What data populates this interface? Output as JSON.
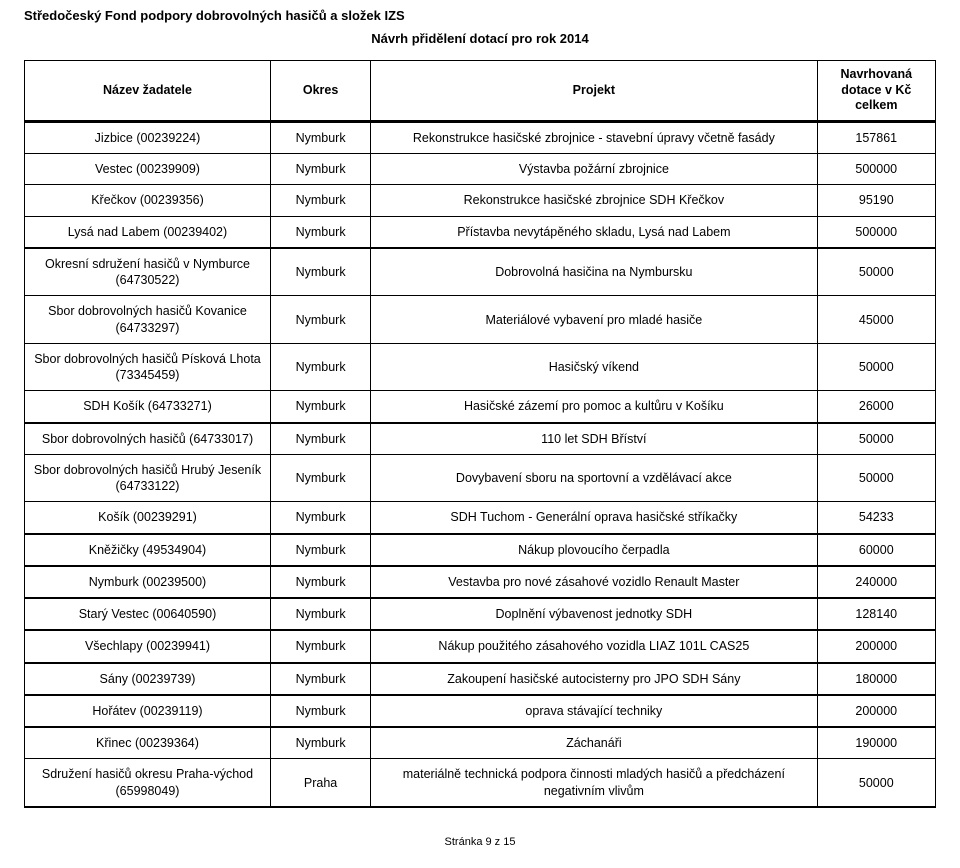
{
  "title": "Středočeský Fond podpory dobrovolných hasičů a složek IZS",
  "subtitle": "Návrh přidělení dotací pro rok 2014",
  "columns": [
    "Název žadatele",
    "Okres",
    "Projekt",
    "Navrhovaná dotace v Kč celkem"
  ],
  "groups": [
    {
      "rows": [
        {
          "name": "Jizbice (00239224)",
          "okres": "Nymburk",
          "projekt": "Rekonstrukce hasičské zbrojnice - stavební úpravy včetně fasády",
          "dotace": "157861"
        },
        {
          "name": "Vestec (00239909)",
          "okres": "Nymburk",
          "projekt": "Výstavba požární zbrojnice",
          "dotace": "500000"
        },
        {
          "name": "Křečkov (00239356)",
          "okres": "Nymburk",
          "projekt": "Rekonstrukce hasičské zbrojnice SDH Křečkov",
          "dotace": "95190"
        },
        {
          "name": "Lysá nad Labem (00239402)",
          "okres": "Nymburk",
          "projekt": "Přístavba nevytápěného skladu, Lysá nad Labem",
          "dotace": "500000"
        }
      ]
    },
    {
      "rows": [
        {
          "name": "Okresní sdružení hasičů v Nymburce (64730522)",
          "okres": "Nymburk",
          "projekt": "Dobrovolná hasičina na Nymbursku",
          "dotace": "50000"
        },
        {
          "name": "Sbor dobrovolných hasičů Kovanice (64733297)",
          "okres": "Nymburk",
          "projekt": "Materiálové vybavení pro mladé hasiče",
          "dotace": "45000"
        },
        {
          "name": "Sbor dobrovolných hasičů Písková Lhota (73345459)",
          "okres": "Nymburk",
          "projekt": "Hasičský víkend",
          "dotace": "50000"
        },
        {
          "name": "SDH Košík (64733271)",
          "okres": "Nymburk",
          "projekt": "Hasičské zázemí pro pomoc a kultůru v Košíku",
          "dotace": "26000"
        }
      ]
    },
    {
      "rows": [
        {
          "name": "Sbor dobrovolných hasičů (64733017)",
          "okres": "Nymburk",
          "projekt": "110 let SDH Bříství",
          "dotace": "50000"
        },
        {
          "name": "Sbor dobrovolných hasičů Hrubý Jeseník (64733122)",
          "okres": "Nymburk",
          "projekt": "Dovybavení sboru na sportovní a vzdělávací akce",
          "dotace": "50000"
        },
        {
          "name": "Košík (00239291)",
          "okres": "Nymburk",
          "projekt": "SDH Tuchom - Generální oprava hasičské stříkačky",
          "dotace": "54233"
        }
      ]
    },
    {
      "rows": [
        {
          "name": "Kněžičky (49534904)",
          "okres": "Nymburk",
          "projekt": "Nákup plovoucího čerpadla",
          "dotace": "60000"
        }
      ]
    },
    {
      "rows": [
        {
          "name": "Nymburk (00239500)",
          "okres": "Nymburk",
          "projekt": "Vestavba pro nové zásahové vozidlo Renault Master",
          "dotace": "240000"
        }
      ]
    },
    {
      "rows": [
        {
          "name": "Starý Vestec (00640590)",
          "okres": "Nymburk",
          "projekt": "Doplnění výbavenost jednotky SDH",
          "dotace": "128140"
        }
      ]
    },
    {
      "rows": [
        {
          "name": "Všechlapy (00239941)",
          "okres": "Nymburk",
          "projekt": "Nákup použitého zásahového vozidla LIAZ 101L CAS25",
          "dotace": "200000"
        }
      ]
    },
    {
      "rows": [
        {
          "name": "Sány (00239739)",
          "okres": "Nymburk",
          "projekt": "Zakoupení hasičské autocisterny pro JPO SDH Sány",
          "dotace": "180000"
        }
      ]
    },
    {
      "rows": [
        {
          "name": "Hořátev (00239119)",
          "okres": "Nymburk",
          "projekt": "oprava stávající techniky",
          "dotace": "200000"
        }
      ]
    },
    {
      "rows": [
        {
          "name": "Křinec (00239364)",
          "okres": "Nymburk",
          "projekt": "Záchanáři",
          "dotace": "190000"
        },
        {
          "name": "Sdružení hasičů okresu Praha-východ (65998049)",
          "okres": "Praha",
          "projekt": "materiálně technická podpora činnosti mladých hasičů a předcházení negativním vlivům",
          "dotace": "50000"
        }
      ]
    }
  ],
  "footer": "Stránka 9 z 15"
}
